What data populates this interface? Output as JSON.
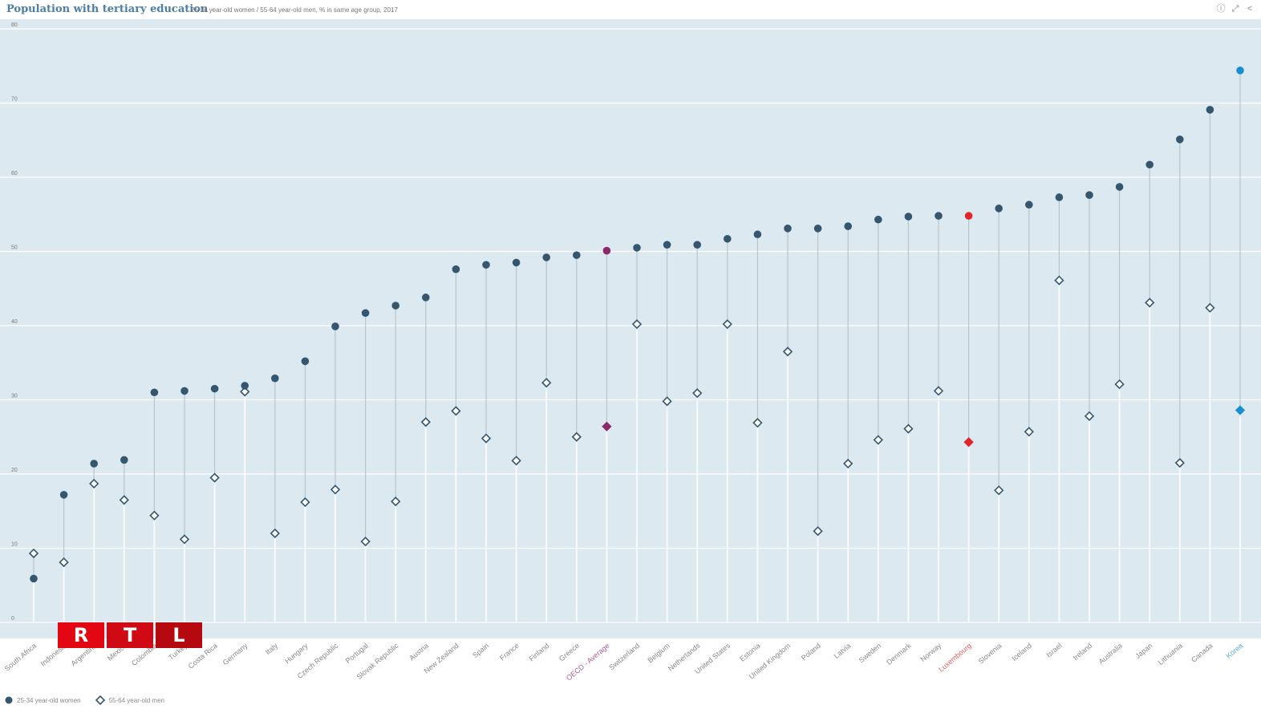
{
  "header": {
    "title": "Population with tertiary education",
    "subtitle": "25-34 year-old women / 55-64 year-old men, % in same age group, 2017",
    "tools": [
      {
        "icon": "info-icon",
        "glyph": "ⓘ"
      },
      {
        "icon": "fullscreen-icon",
        "glyph": "⤢"
      },
      {
        "icon": "share-icon",
        "glyph": "<"
      }
    ]
  },
  "watermark": {
    "letters": [
      "R",
      "T",
      "L"
    ],
    "colors": [
      "#e30613",
      "#d00a14",
      "#b5090f"
    ]
  },
  "colors": {
    "women": "#35566f",
    "men_stroke": "#35566f",
    "oecd": "#8b2a6a",
    "luxembourg": "#e0252b",
    "korea": "#1a8fcf",
    "stem": "#b8c4cc",
    "grid": "#ffffff",
    "label": "#888888"
  },
  "chart_data": {
    "type": "scatter",
    "title": "Population with tertiary education",
    "subtitle": "25-34 year-old women / 55-64 year-old men, % in same age group, 2017",
    "xlabel": "",
    "ylabel": "",
    "ylim": [
      0,
      80
    ],
    "yticks": [
      0,
      10,
      20,
      30,
      40,
      50,
      60,
      70,
      80
    ],
    "grid": true,
    "legend_position": "bottom-left",
    "legend": [
      "25-34 year-old women",
      "55-64 year-old men"
    ],
    "categories": [
      "South Africa",
      "Indonesia",
      "Argentina",
      "Mexico",
      "Colombia",
      "Turkey",
      "Costa Rica",
      "Germany",
      "Italy",
      "Hungary",
      "Czech Republic",
      "Portugal",
      "Slovak Republic",
      "Austria",
      "New Zealand",
      "Spain",
      "France",
      "Finland",
      "Greece",
      "OECD - Average",
      "Switzerland",
      "Belgium",
      "Netherlands",
      "United States",
      "Estonia",
      "United Kingdom",
      "Poland",
      "Latvia",
      "Sweden",
      "Denmark",
      "Norway",
      "Luxembourg",
      "Slovenia",
      "Iceland",
      "Israel",
      "Ireland",
      "Australia",
      "Japan",
      "Lithuania",
      "Canada",
      "Korea"
    ],
    "highlight": {
      "OECD - Average": "oecd",
      "Luxembourg": "luxembourg",
      "Korea": "korea"
    },
    "series": [
      {
        "name": "25-34 year-old women",
        "marker": "circle",
        "values": [
          5.9,
          17.2,
          21.4,
          21.9,
          31.0,
          31.2,
          31.5,
          31.9,
          32.9,
          35.2,
          39.9,
          41.7,
          42.7,
          43.8,
          47.6,
          48.2,
          48.5,
          49.2,
          49.5,
          50.1,
          50.5,
          50.9,
          50.9,
          51.7,
          52.3,
          53.1,
          53.1,
          53.4,
          54.3,
          54.7,
          54.8,
          54.8,
          55.8,
          56.3,
          57.3,
          57.6,
          58.7,
          61.7,
          65.1,
          69.1,
          74.4
        ]
      },
      {
        "name": "55-64 year-old men",
        "marker": "diamond",
        "values": [
          9.3,
          8.1,
          18.7,
          16.5,
          14.4,
          11.2,
          19.5,
          31.1,
          12.0,
          16.2,
          17.9,
          10.9,
          16.3,
          27.0,
          28.5,
          24.8,
          21.8,
          32.3,
          25.0,
          26.4,
          40.2,
          29.8,
          30.9,
          40.2,
          26.9,
          36.5,
          12.3,
          21.4,
          24.6,
          26.1,
          31.2,
          24.3,
          17.8,
          25.7,
          46.1,
          27.8,
          32.1,
          43.1,
          21.5,
          42.4,
          28.6
        ]
      }
    ]
  }
}
